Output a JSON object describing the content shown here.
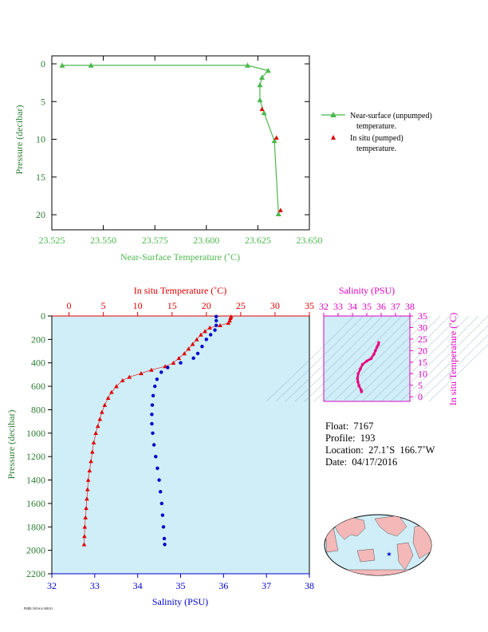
{
  "chart_data": [
    {
      "type": "line",
      "xlabel": "Near-Surface Temperature (˚C)",
      "ylabel": "Pressure (decibar)",
      "xlim": [
        23.525,
        23.65
      ],
      "ylim": [
        0,
        22
      ],
      "y_inverted": true,
      "x_ticks": [
        "23.525",
        "23.550",
        "23.575",
        "23.600",
        "23.625",
        "23.650"
      ],
      "y_ticks": [
        "0",
        "5",
        "10",
        "15",
        "20"
      ],
      "legend_position": "right",
      "series": [
        {
          "name": "Near-surface (unpumped) temperature.",
          "color": "#4cb84c",
          "points": [
            [
              23.53,
              0.2
            ],
            [
              23.544,
              0.2
            ],
            [
              23.62,
              0.2
            ],
            [
              23.63,
              0.9
            ],
            [
              23.627,
              1.8
            ],
            [
              23.626,
              2.8
            ],
            [
              23.626,
              4.8
            ],
            [
              23.628,
              6.5
            ],
            [
              23.633,
              10.2
            ],
            [
              23.635,
              19.9
            ]
          ]
        },
        {
          "name": "In situ (pumped) temperature.",
          "color": "#e00000",
          "points": [
            [
              23.627,
              6.0
            ],
            [
              23.634,
              9.8
            ],
            [
              23.636,
              19.4
            ]
          ]
        }
      ],
      "legend": {
        "near_surface_line1": "Near-surface (unpumped)",
        "near_surface_line2": "temperature.",
        "in_situ_line1": "In situ (pumped)",
        "in_situ_line2": "temperature."
      }
    },
    {
      "type": "line",
      "ylabel": "Pressure (decibar)",
      "xlabel_bottom": "Salinity (PSU)",
      "xlabel_top": "In situ Temperature (˚C)",
      "ylim": [
        0,
        2200
      ],
      "y_inverted": true,
      "y_ticks": [
        "0",
        "200",
        "400",
        "600",
        "800",
        "1000",
        "1200",
        "1400",
        "1600",
        "1800",
        "2000",
        "2200"
      ],
      "salinity_ticks": [
        "32",
        "33",
        "34",
        "35",
        "36",
        "37",
        "38"
      ],
      "salinity_range": [
        32,
        38
      ],
      "temperature_ticks": [
        "0",
        "5",
        "10",
        "15",
        "20",
        "25",
        "30",
        "35"
      ],
      "temperature_range": [
        -2.5,
        35
      ],
      "series": [
        {
          "name": "In situ Temperature",
          "color": "#e00000",
          "points": [
            [
              23.6,
              5
            ],
            [
              23.5,
              20
            ],
            [
              23.4,
              40
            ],
            [
              23.2,
              60
            ],
            [
              22.0,
              80
            ],
            [
              20.5,
              100
            ],
            [
              19.8,
              130
            ],
            [
              19.2,
              160
            ],
            [
              18.6,
              200
            ],
            [
              18.0,
              240
            ],
            [
              17.4,
              280
            ],
            [
              16.8,
              320
            ],
            [
              16.0,
              360
            ],
            [
              15.2,
              400
            ],
            [
              14.0,
              430
            ],
            [
              12.0,
              460
            ],
            [
              10.5,
              490
            ],
            [
              8.8,
              520
            ],
            [
              7.8,
              550
            ],
            [
              6.9,
              600
            ],
            [
              6.2,
              650
            ],
            [
              5.7,
              700
            ],
            [
              5.2,
              760
            ],
            [
              4.8,
              820
            ],
            [
              4.5,
              880
            ],
            [
              4.2,
              940
            ],
            [
              3.9,
              1000
            ],
            [
              3.6,
              1080
            ],
            [
              3.4,
              1160
            ],
            [
              3.2,
              1240
            ],
            [
              3.0,
              1320
            ],
            [
              2.8,
              1400
            ],
            [
              2.7,
              1480
            ],
            [
              2.6,
              1560
            ],
            [
              2.5,
              1640
            ],
            [
              2.4,
              1720
            ],
            [
              2.3,
              1800
            ],
            [
              2.25,
              1880
            ],
            [
              2.2,
              1950
            ]
          ]
        },
        {
          "name": "Salinity",
          "color": "#0000cc",
          "points": [
            [
              35.83,
              5
            ],
            [
              35.83,
              40
            ],
            [
              35.83,
              80
            ],
            [
              35.8,
              120
            ],
            [
              35.7,
              160
            ],
            [
              35.6,
              200
            ],
            [
              35.5,
              260
            ],
            [
              35.4,
              320
            ],
            [
              35.3,
              360
            ],
            [
              35.0,
              400
            ],
            [
              34.7,
              440
            ],
            [
              34.55,
              480
            ],
            [
              34.45,
              540
            ],
            [
              34.4,
              600
            ],
            [
              34.36,
              680
            ],
            [
              34.34,
              760
            ],
            [
              34.33,
              840
            ],
            [
              34.33,
              920
            ],
            [
              34.35,
              1000
            ],
            [
              34.38,
              1100
            ],
            [
              34.42,
              1200
            ],
            [
              34.46,
              1300
            ],
            [
              34.5,
              1400
            ],
            [
              34.53,
              1500
            ],
            [
              34.56,
              1600
            ],
            [
              34.58,
              1700
            ],
            [
              34.6,
              1800
            ],
            [
              34.62,
              1900
            ],
            [
              34.63,
              1950
            ]
          ]
        }
      ]
    },
    {
      "type": "scatter",
      "title": "Salinity (PSU)",
      "ylabel": "In situ Temperature (˚C)",
      "x_ticks": [
        "32",
        "33",
        "34",
        "35",
        "36",
        "37",
        "38"
      ],
      "y_ticks": [
        "0",
        "5",
        "10",
        "15",
        "20",
        "25",
        "30",
        "35"
      ],
      "xlim": [
        32,
        38
      ],
      "ylim": [
        -2,
        35
      ],
      "color": "#e8007f",
      "points": [
        [
          34.63,
          2.2
        ],
        [
          34.6,
          3.0
        ],
        [
          34.45,
          4.8
        ],
        [
          34.38,
          6.5
        ],
        [
          34.35,
          8.0
        ],
        [
          34.4,
          10.0
        ],
        [
          34.55,
          12.0
        ],
        [
          34.7,
          14.0
        ],
        [
          35.0,
          15.5
        ],
        [
          35.3,
          16.5
        ],
        [
          35.5,
          18.5
        ],
        [
          35.6,
          20.0
        ],
        [
          35.7,
          21.5
        ],
        [
          35.8,
          22.5
        ],
        [
          35.83,
          23.5
        ]
      ]
    }
  ],
  "info": {
    "float": "Float:  7167",
    "profile": "Profile:  193",
    "location": "Location:  27.1˚S  166.7˚W",
    "date": "Date:  04/17/2016"
  },
  "credit": "PMEL/NOAA/ARGO",
  "colors": {
    "green_axis": "#4cb84c",
    "red_axis": "#e00000",
    "blue_axis": "#0000cc",
    "magenta_axis": "#e000c0",
    "plot_bg": "#cfeef8",
    "land": "#f4b8b8"
  }
}
